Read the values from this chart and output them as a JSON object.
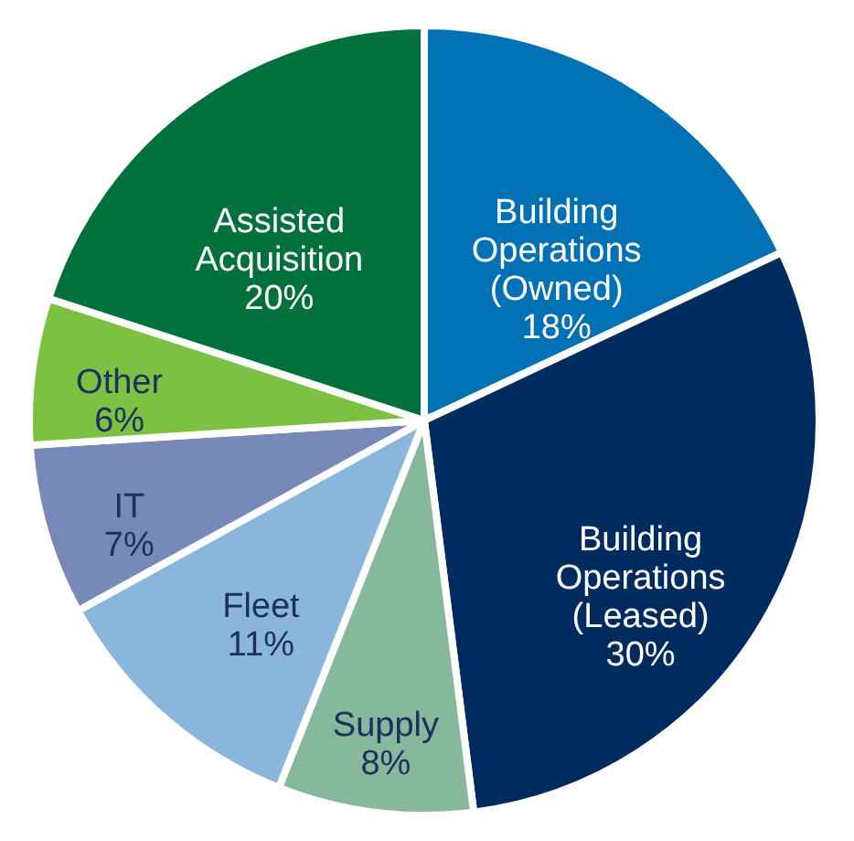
{
  "chart_data": {
    "type": "pie",
    "categories": [
      "Building Operations (Owned)",
      "Building Operations (Leased)",
      "Supply",
      "Fleet",
      "IT",
      "Other",
      "Assisted Acquisition"
    ],
    "values": [
      18,
      30,
      8,
      11,
      7,
      6,
      20
    ],
    "value_labels": [
      "18%",
      "30%",
      "8%",
      "11%",
      "7%",
      "6%",
      "20%"
    ],
    "colors": [
      "#0071b5",
      "#002b5f",
      "#86b89c",
      "#8ab6de",
      "#7789b8",
      "#7cc142",
      "#00703c"
    ],
    "legend": false
  }
}
